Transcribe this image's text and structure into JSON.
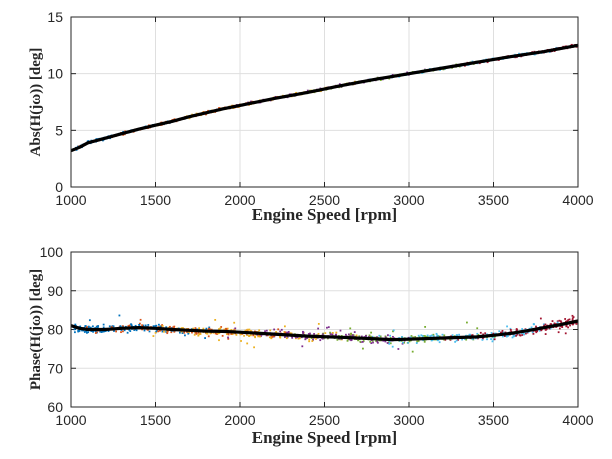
{
  "chart_data": [
    {
      "type": "scatter",
      "title": "",
      "xlabel": "Engine Speed [rpm]",
      "ylabel": "Abs(H(jω)) [deg]",
      "xlim": [
        1000,
        4000
      ],
      "ylim": [
        0,
        15
      ],
      "xticks": [
        "1000",
        "1500",
        "2000",
        "2500",
        "3000",
        "3500",
        "4000"
      ],
      "yticks": [
        "0",
        "5",
        "10",
        "15"
      ],
      "grid": true,
      "legend": "none",
      "series": [
        {
          "color": "#000000",
          "style": "line",
          "x": [
            1000,
            1050,
            1100,
            1200,
            1300,
            1400,
            1500,
            1600,
            1700,
            1800,
            1900,
            2000,
            2200,
            2400,
            2600,
            2800,
            3000,
            3200,
            3400,
            3600,
            3800,
            4000
          ],
          "y": [
            3.2,
            3.5,
            3.9,
            4.3,
            4.7,
            5.1,
            5.45,
            5.8,
            6.2,
            6.55,
            6.9,
            7.2,
            7.8,
            8.35,
            8.95,
            9.5,
            10.0,
            10.5,
            11.0,
            11.5,
            11.95,
            12.5
          ]
        }
      ],
      "scatter_colors": [
        "#0072BD",
        "#D95319",
        "#EDB120",
        "#7E2F8E",
        "#77AC30",
        "#4DBEEE",
        "#A2142F"
      ]
    },
    {
      "type": "scatter",
      "title": "",
      "xlabel": "Engine Speed [rpm]",
      "ylabel": "Phase(H(jω)) [deg]",
      "xlim": [
        1000,
        4000
      ],
      "ylim": [
        60,
        100
      ],
      "xticks": [
        "1000",
        "1500",
        "2000",
        "2500",
        "3000",
        "3500",
        "4000"
      ],
      "yticks": [
        "60",
        "70",
        "80",
        "90",
        "100"
      ],
      "grid": true,
      "legend": "none",
      "series": [
        {
          "color": "#000000",
          "style": "line",
          "x": [
            1000,
            1050,
            1100,
            1200,
            1300,
            1400,
            1500,
            1600,
            1700,
            1800,
            1900,
            2000,
            2200,
            2400,
            2600,
            2800,
            2900,
            3000,
            3200,
            3400,
            3500,
            3600,
            3700,
            3800,
            3900,
            4000
          ],
          "y": [
            81,
            80.3,
            80,
            80,
            80.3,
            80.5,
            80.3,
            80.0,
            79.8,
            79.6,
            79.5,
            79.3,
            78.8,
            78.3,
            78.0,
            77.6,
            77.4,
            77.5,
            77.8,
            78.1,
            78.5,
            79.0,
            79.7,
            80.5,
            81.3,
            82.2
          ]
        }
      ],
      "scatter_colors": [
        "#0072BD",
        "#D95319",
        "#EDB120",
        "#7E2F8E",
        "#77AC30",
        "#4DBEEE",
        "#A2142F"
      ]
    }
  ]
}
